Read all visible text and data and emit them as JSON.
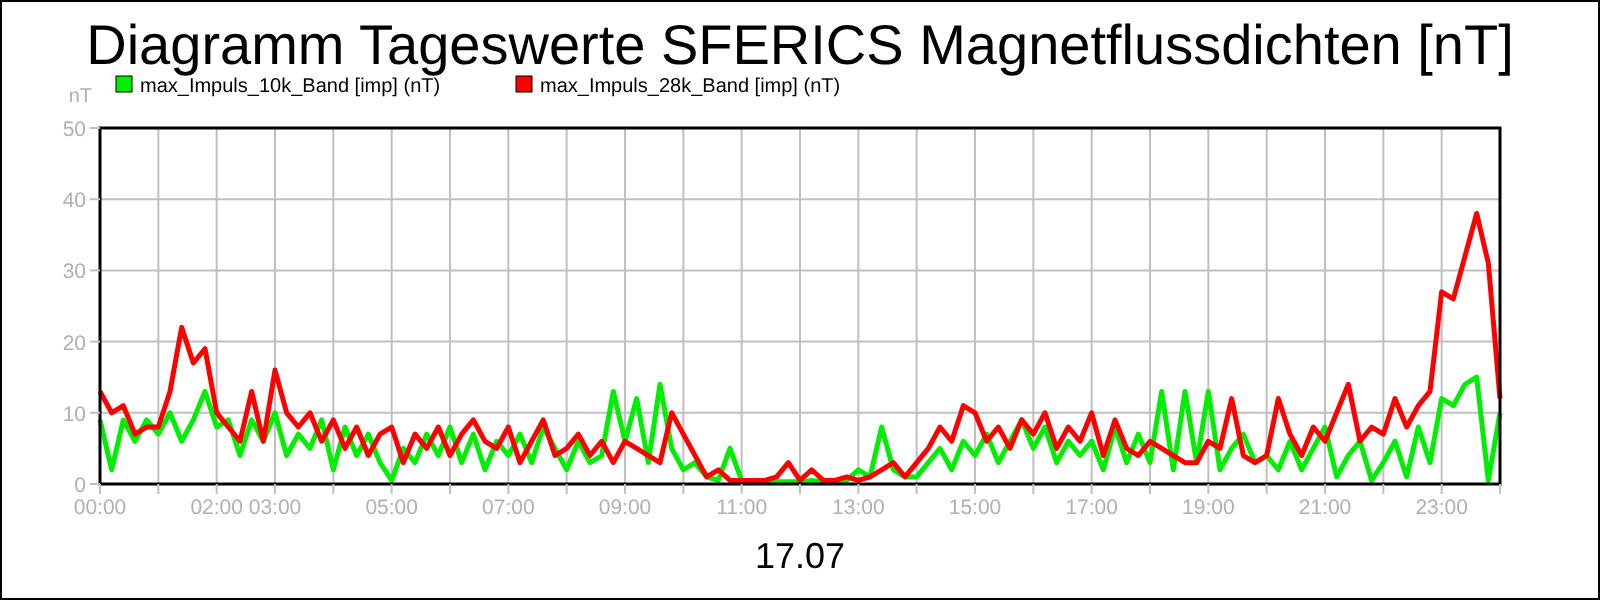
{
  "chart_data": {
    "type": "line",
    "title": "Diagramm Tageswerte SFERICS Magnetflussdichten [nT]",
    "xlabel": "17.07",
    "ylabel": "nT",
    "legend": "top left",
    "grid": true,
    "marker": "none",
    "line_style": "solid",
    "xlim": [
      0,
      24
    ],
    "ylim": [
      0,
      50
    ],
    "yticks": [
      0,
      10,
      20,
      30,
      40,
      50
    ],
    "xticks": [
      {
        "value": 0,
        "label": "00:00"
      },
      {
        "value": 1,
        "label": null
      },
      {
        "value": 2,
        "label": "02:00"
      },
      {
        "value": 3,
        "label": "03:00"
      },
      {
        "value": 4,
        "label": null
      },
      {
        "value": 5,
        "label": "05:00"
      },
      {
        "value": 6,
        "label": null
      },
      {
        "value": 7,
        "label": "07:00"
      },
      {
        "value": 8,
        "label": null
      },
      {
        "value": 9,
        "label": "09:00"
      },
      {
        "value": 10,
        "label": null
      },
      {
        "value": 11,
        "label": "11:00"
      },
      {
        "value": 12,
        "label": null
      },
      {
        "value": 13,
        "label": "13:00"
      },
      {
        "value": 14,
        "label": null
      },
      {
        "value": 15,
        "label": "15:00"
      },
      {
        "value": 16,
        "label": null
      },
      {
        "value": 17,
        "label": "17:00"
      },
      {
        "value": 18,
        "label": null
      },
      {
        "value": 19,
        "label": "19:00"
      },
      {
        "value": 20,
        "label": null
      },
      {
        "value": 21,
        "label": "21:00"
      },
      {
        "value": 22,
        "label": null
      },
      {
        "value": 23,
        "label": "23:00"
      },
      {
        "value": 24,
        "label": null
      }
    ],
    "x": [
      0,
      0.2,
      0.4,
      0.6,
      0.8,
      1,
      1.2,
      1.4,
      1.6,
      1.8,
      2,
      2.2,
      2.4,
      2.6,
      2.8,
      3,
      3.2,
      3.4,
      3.6,
      3.8,
      4,
      4.2,
      4.4,
      4.6,
      4.8,
      5,
      5.2,
      5.4,
      5.6,
      5.8,
      6,
      6.2,
      6.4,
      6.6,
      6.8,
      7,
      7.2,
      7.4,
      7.6,
      7.8,
      8,
      8.2,
      8.4,
      8.6,
      8.8,
      9,
      9.2,
      9.4,
      9.6,
      9.8,
      10,
      10.2,
      10.4,
      10.6,
      10.8,
      11,
      11.2,
      11.4,
      11.6,
      11.8,
      12,
      12.2,
      12.4,
      12.6,
      12.8,
      13,
      13.2,
      13.4,
      13.6,
      13.8,
      14,
      14.2,
      14.4,
      14.6,
      14.8,
      15,
      15.2,
      15.4,
      15.6,
      15.8,
      16,
      16.2,
      16.4,
      16.6,
      16.8,
      17,
      17.2,
      17.4,
      17.6,
      17.8,
      18,
      18.2,
      18.4,
      18.6,
      18.8,
      19,
      19.2,
      19.4,
      19.6,
      19.8,
      20,
      20.2,
      20.4,
      20.6,
      20.8,
      21,
      21.2,
      21.4,
      21.6,
      21.8,
      22,
      22.2,
      22.4,
      22.6,
      22.8,
      23,
      23.2,
      23.4,
      23.6,
      23.8,
      24
    ],
    "series": [
      {
        "name": "max_Impuls_10k_Band [imp] (nT)",
        "color": "#00ee00",
        "values": [
          9,
          2,
          9,
          6,
          9,
          7,
          10,
          6,
          9,
          13,
          8,
          9,
          4,
          9,
          6,
          10,
          4,
          7,
          5,
          9,
          2,
          8,
          4,
          7,
          3,
          0.5,
          5,
          3,
          7,
          4,
          8,
          3,
          7,
          2,
          6,
          4,
          7,
          3,
          8,
          5,
          2,
          6,
          3,
          4,
          13,
          6,
          12,
          3,
          14,
          5,
          2,
          3,
          1,
          0.5,
          5,
          0.5,
          0.5,
          0.3,
          0.3,
          0.3,
          0.3,
          0.5,
          0.3,
          0.3,
          0.5,
          2,
          1,
          8,
          2,
          1,
          1,
          3,
          5,
          2,
          6,
          4,
          7,
          3,
          6,
          9,
          5,
          8,
          3,
          6,
          4,
          6,
          2,
          8,
          3,
          7,
          3,
          13,
          2,
          13,
          3,
          13,
          2,
          5,
          7,
          3,
          4,
          2,
          6,
          2,
          5,
          8,
          1,
          4,
          6,
          0.5,
          3,
          6,
          1,
          8,
          3,
          12,
          11,
          14,
          15,
          0.5,
          10
        ]
      },
      {
        "name": "max_Impuls_28k_Band [imp] (nT)",
        "color": "#ff0000",
        "values": [
          13,
          10,
          11,
          7,
          8,
          8,
          13,
          22,
          17,
          19,
          10,
          8,
          6,
          13,
          6,
          16,
          10,
          8,
          10,
          6,
          9,
          5,
          8,
          4,
          7,
          8,
          3,
          7,
          5,
          8,
          4,
          7,
          9,
          6,
          5,
          8,
          3,
          6,
          9,
          4,
          5,
          7,
          4,
          6,
          3,
          6,
          5,
          4,
          3,
          10,
          7,
          4,
          1,
          2,
          0.5,
          0.5,
          0.5,
          0.5,
          1,
          3,
          0.5,
          2,
          0.5,
          0.5,
          1,
          0.5,
          1,
          2,
          3,
          1,
          3,
          5,
          8,
          6,
          11,
          10,
          6,
          8,
          5,
          9,
          7,
          10,
          5,
          8,
          6,
          10,
          4,
          9,
          5,
          4,
          6,
          5,
          4,
          3,
          3,
          6,
          5,
          12,
          4,
          3,
          4,
          12,
          7,
          4,
          8,
          6,
          10,
          14,
          6,
          8,
          7,
          12,
          8,
          11,
          13,
          27,
          26,
          32,
          38,
          31,
          12
        ]
      }
    ]
  }
}
